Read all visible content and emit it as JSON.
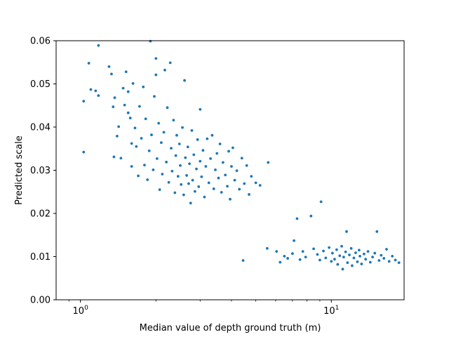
{
  "chart_data": {
    "type": "scatter",
    "title": "",
    "xlabel": "Median value of depth ground truth (m)",
    "ylabel": "Predicted scale",
    "xscale": "log",
    "xlim": [
      0.8,
      19.5
    ],
    "ylim": [
      0.0,
      0.06
    ],
    "xticks": [
      {
        "value": 1,
        "label": "10",
        "sup": "0"
      },
      {
        "value": 10,
        "label": "10",
        "sup": "1"
      }
    ],
    "yticks": [
      {
        "value": 0.0,
        "label": "0.00"
      },
      {
        "value": 0.01,
        "label": "0.01"
      },
      {
        "value": 0.02,
        "label": "0.02"
      },
      {
        "value": 0.03,
        "label": "0.03"
      },
      {
        "value": 0.04,
        "label": "0.04"
      },
      {
        "value": 0.05,
        "label": "0.05"
      },
      {
        "value": 0.06,
        "label": "0.06"
      }
    ],
    "grid": false,
    "marker_color": "#1f77b4",
    "series": [
      {
        "points": [
          [
            1.03,
            0.046
          ],
          [
            1.03,
            0.0342
          ],
          [
            1.08,
            0.0548
          ],
          [
            1.1,
            0.0487
          ],
          [
            1.15,
            0.0484
          ],
          [
            1.18,
            0.0589
          ],
          [
            1.18,
            0.0473
          ],
          [
            1.3,
            0.054
          ],
          [
            1.33,
            0.0523
          ],
          [
            1.35,
            0.0447
          ],
          [
            1.36,
            0.0331
          ],
          [
            1.37,
            0.0468
          ],
          [
            1.4,
            0.0379
          ],
          [
            1.42,
            0.0401
          ],
          [
            1.45,
            0.0328
          ],
          [
            1.48,
            0.049
          ],
          [
            1.5,
            0.0451
          ],
          [
            1.52,
            0.0528
          ],
          [
            1.55,
            0.0433
          ],
          [
            1.55,
            0.0482
          ],
          [
            1.58,
            0.0421
          ],
          [
            1.6,
            0.0362
          ],
          [
            1.6,
            0.0309
          ],
          [
            1.62,
            0.0501
          ],
          [
            1.65,
            0.0398
          ],
          [
            1.67,
            0.0355
          ],
          [
            1.7,
            0.0287
          ],
          [
            1.72,
            0.0448
          ],
          [
            1.75,
            0.0374
          ],
          [
            1.78,
            0.0493
          ],
          [
            1.8,
            0.0312
          ],
          [
            1.82,
            0.0419
          ],
          [
            1.85,
            0.0278
          ],
          [
            1.88,
            0.0345
          ],
          [
            1.9,
            0.0599
          ],
          [
            1.92,
            0.0382
          ],
          [
            1.95,
            0.0301
          ],
          [
            1.97,
            0.0471
          ],
          [
            2.0,
            0.0521
          ],
          [
            2.0,
            0.0559
          ],
          [
            2.02,
            0.0327
          ],
          [
            2.05,
            0.0409
          ],
          [
            2.07,
            0.0255
          ],
          [
            2.1,
            0.0364
          ],
          [
            2.12,
            0.0291
          ],
          [
            2.15,
            0.0388
          ],
          [
            2.17,
            0.0532
          ],
          [
            2.2,
            0.0319
          ],
          [
            2.22,
            0.0445
          ],
          [
            2.25,
            0.0272
          ],
          [
            2.28,
            0.0549
          ],
          [
            2.3,
            0.0351
          ],
          [
            2.32,
            0.0298
          ],
          [
            2.35,
            0.0416
          ],
          [
            2.38,
            0.0248
          ],
          [
            2.4,
            0.0334
          ],
          [
            2.42,
            0.0381
          ],
          [
            2.45,
            0.0286
          ],
          [
            2.48,
            0.0361
          ],
          [
            2.5,
            0.0311
          ],
          [
            2.52,
            0.0267
          ],
          [
            2.55,
            0.0399
          ],
          [
            2.58,
            0.0243
          ],
          [
            2.6,
            0.0508
          ],
          [
            2.62,
            0.0329
          ],
          [
            2.65,
            0.0288
          ],
          [
            2.68,
            0.0354
          ],
          [
            2.7,
            0.0269
          ],
          [
            2.72,
            0.0315
          ],
          [
            2.75,
            0.0224
          ],
          [
            2.78,
            0.0392
          ],
          [
            2.8,
            0.0277
          ],
          [
            2.83,
            0.0336
          ],
          [
            2.86,
            0.0251
          ],
          [
            2.9,
            0.0303
          ],
          [
            2.93,
            0.0371
          ],
          [
            2.96,
            0.0262
          ],
          [
            3.0,
            0.0321
          ],
          [
            3.0,
            0.0441
          ],
          [
            3.04,
            0.0285
          ],
          [
            3.08,
            0.0346
          ],
          [
            3.12,
            0.0238
          ],
          [
            3.16,
            0.0309
          ],
          [
            3.2,
            0.0373
          ],
          [
            3.25,
            0.0271
          ],
          [
            3.3,
            0.0327
          ],
          [
            3.35,
            0.0381
          ],
          [
            3.4,
            0.0257
          ],
          [
            3.45,
            0.0301
          ],
          [
            3.5,
            0.0339
          ],
          [
            3.55,
            0.0282
          ],
          [
            3.6,
            0.0361
          ],
          [
            3.65,
            0.0249
          ],
          [
            3.7,
            0.0318
          ],
          [
            3.78,
            0.0289
          ],
          [
            3.85,
            0.0263
          ],
          [
            3.9,
            0.0344
          ],
          [
            3.95,
            0.0233
          ],
          [
            4.0,
            0.0309
          ],
          [
            4.05,
            0.0352
          ],
          [
            4.12,
            0.0277
          ],
          [
            4.2,
            0.0299
          ],
          [
            4.3,
            0.0256
          ],
          [
            4.4,
            0.0328
          ],
          [
            4.5,
            0.0269
          ],
          [
            4.45,
            0.0091
          ],
          [
            4.6,
            0.0311
          ],
          [
            4.7,
            0.0244
          ],
          [
            4.8,
            0.0286
          ],
          [
            5.0,
            0.0271
          ],
          [
            5.2,
            0.0265
          ],
          [
            5.6,
            0.0318
          ],
          [
            5.55,
            0.0119
          ],
          [
            6.05,
            0.0112
          ],
          [
            6.25,
            0.0087
          ],
          [
            6.5,
            0.0101
          ],
          [
            6.7,
            0.0096
          ],
          [
            7.0,
            0.0107
          ],
          [
            7.1,
            0.0137
          ],
          [
            7.3,
            0.0188
          ],
          [
            7.5,
            0.0093
          ],
          [
            7.7,
            0.0112
          ],
          [
            7.9,
            0.0099
          ],
          [
            8.3,
            0.0194
          ],
          [
            8.5,
            0.0118
          ],
          [
            8.8,
            0.0105
          ],
          [
            9.1,
            0.0227
          ],
          [
            9.0,
            0.0092
          ],
          [
            9.3,
            0.0113
          ],
          [
            9.5,
            0.0097
          ],
          [
            9.8,
            0.0121
          ],
          [
            10.0,
            0.0089
          ],
          [
            10.1,
            0.0108
          ],
          [
            10.3,
            0.0094
          ],
          [
            10.5,
            0.0116
          ],
          [
            10.6,
            0.0082
          ],
          [
            10.8,
            0.0102
          ],
          [
            11.0,
            0.0124
          ],
          [
            11.1,
            0.0071
          ],
          [
            11.2,
            0.0099
          ],
          [
            11.4,
            0.0111
          ],
          [
            11.5,
            0.0158
          ],
          [
            11.6,
            0.0086
          ],
          [
            11.8,
            0.0104
          ],
          [
            12.0,
            0.0119
          ],
          [
            12.1,
            0.0079
          ],
          [
            12.3,
            0.0097
          ],
          [
            12.5,
            0.0109
          ],
          [
            12.7,
            0.0088
          ],
          [
            12.9,
            0.0115
          ],
          [
            13.0,
            0.0101
          ],
          [
            13.2,
            0.0083
          ],
          [
            13.5,
            0.0106
          ],
          [
            13.7,
            0.0094
          ],
          [
            14.0,
            0.0112
          ],
          [
            14.3,
            0.0087
          ],
          [
            14.6,
            0.0099
          ],
          [
            14.9,
            0.0108
          ],
          [
            15.2,
            0.0158
          ],
          [
            15.5,
            0.0091
          ],
          [
            15.8,
            0.0103
          ],
          [
            16.2,
            0.0096
          ],
          [
            16.6,
            0.0117
          ],
          [
            17.0,
            0.0089
          ],
          [
            17.5,
            0.0101
          ],
          [
            18.0,
            0.0092
          ],
          [
            18.6,
            0.0086
          ]
        ]
      }
    ]
  }
}
